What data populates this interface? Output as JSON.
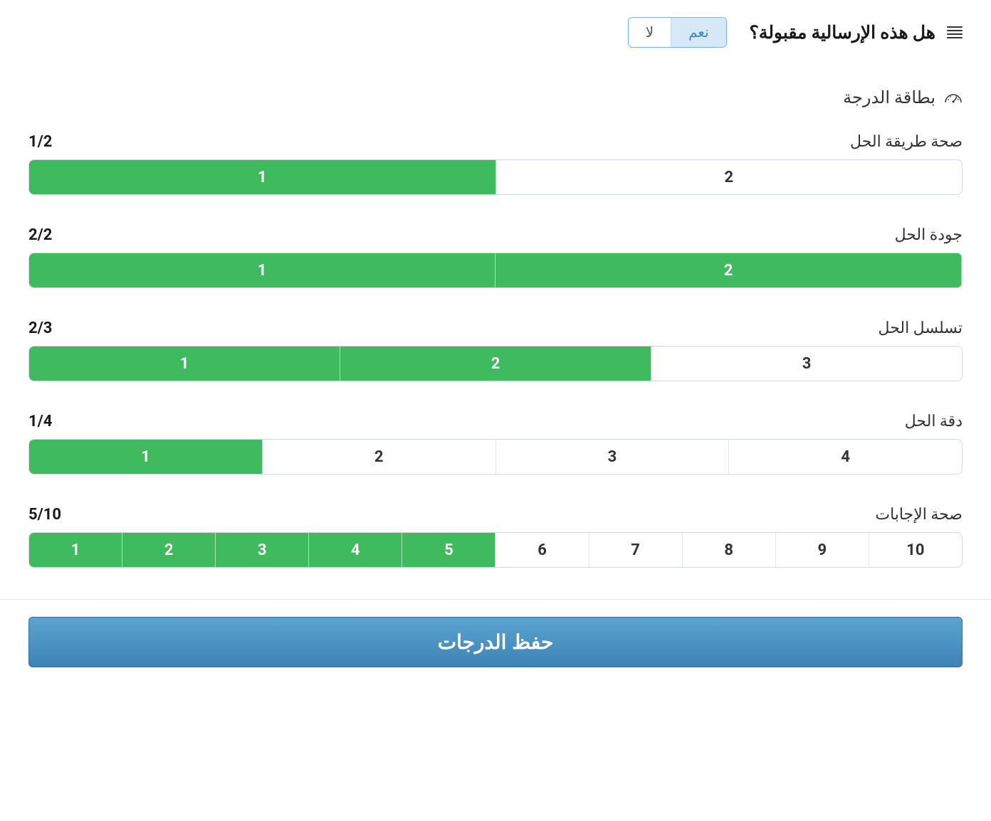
{
  "header": {
    "question": "هل هذه الإرسالية مقبولة؟",
    "toggle": {
      "yes": "نعم",
      "no": "لا",
      "selected": "yes"
    }
  },
  "section": {
    "title": "بطاقة الدرجة"
  },
  "criteria": [
    {
      "label": "صحة طريقة الحل",
      "score_text": "1/2",
      "max": 2,
      "value": 1
    },
    {
      "label": "جودة الحل",
      "score_text": "2/2",
      "max": 2,
      "value": 2
    },
    {
      "label": "تسلسل الحل",
      "score_text": "2/3",
      "max": 3,
      "value": 2
    },
    {
      "label": "دقة الحل",
      "score_text": "1/4",
      "max": 4,
      "value": 1
    },
    {
      "label": "صحة الإجابات",
      "score_text": "5/10",
      "max": 10,
      "value": 5
    }
  ],
  "footer": {
    "save_label": "حفظ الدرجات"
  },
  "colors": {
    "filled": "#3fba5f",
    "toggle_active_bg": "#d7e9f8",
    "toggle_border": "#77b4e8",
    "save_gradient_top": "#5ba3d0",
    "save_gradient_bottom": "#3d84b5"
  }
}
